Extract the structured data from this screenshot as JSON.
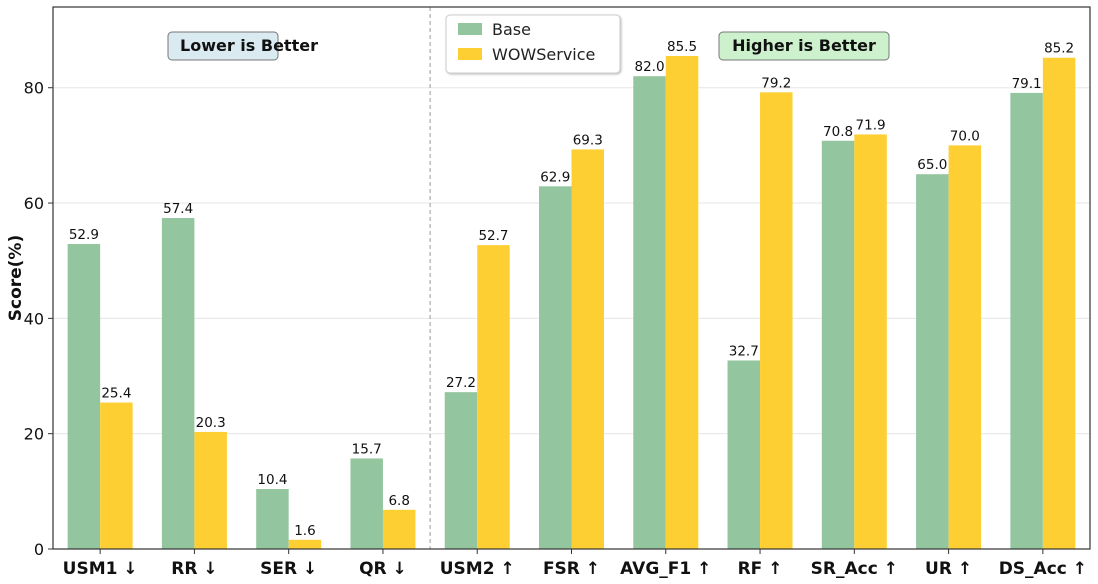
{
  "chart_data": {
    "type": "bar",
    "categories": [
      "USM1 ↓",
      "RR ↓",
      "SER ↓",
      "QR ↓",
      "USM2 ↑",
      "FSR ↑",
      "AVG_F1 ↑",
      "RF ↑",
      "SR_Acc ↑",
      "UR ↑",
      "DS_Acc ↑"
    ],
    "series": [
      {
        "name": "Base",
        "color": "#93c59f",
        "values": [
          52.9,
          57.4,
          10.4,
          15.7,
          27.2,
          62.9,
          82.0,
          32.7,
          70.8,
          65.0,
          79.1
        ]
      },
      {
        "name": "WOWService",
        "color": "#fdcf33",
        "values": [
          25.4,
          20.3,
          1.6,
          6.8,
          52.7,
          69.3,
          85.5,
          79.2,
          71.9,
          70.0,
          85.2
        ]
      }
    ],
    "xlabel": "",
    "ylabel": "Score(%)",
    "ylim": [
      0,
      94
    ],
    "yticks": [
      0,
      20,
      40,
      60,
      80
    ],
    "grid": "horizontal",
    "legend": "top-center",
    "annotations": [
      {
        "text": "Lower is Better",
        "bg": "#d9eaf0"
      },
      {
        "text": "Higher is Better",
        "bg": "#cdf0cd"
      }
    ],
    "divider_after_category": 3
  }
}
